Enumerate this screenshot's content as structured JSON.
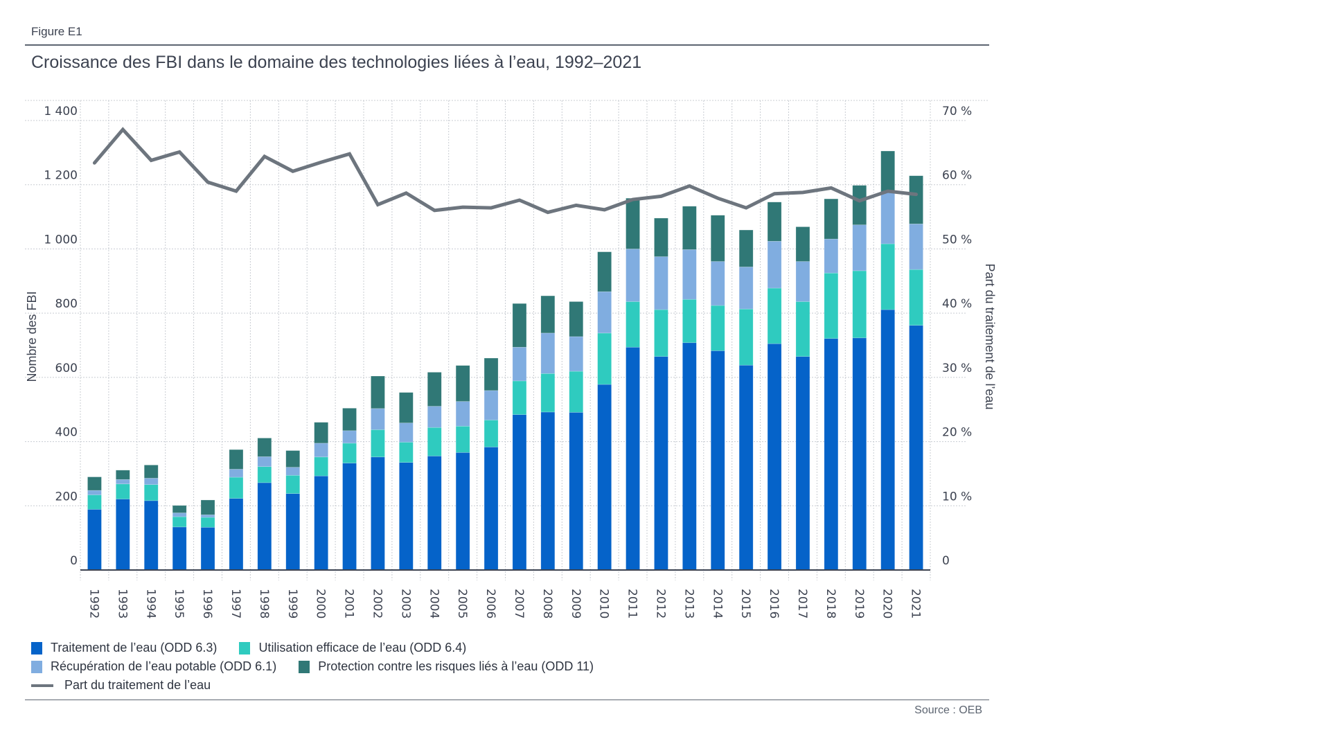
{
  "figure_label": "Figure E1",
  "title": "Croissance des FBI dans le domaine des technologies liées à l’eau, 1992–2021",
  "source": "Source : OEB",
  "colors": {
    "treatment": "#0563c9",
    "efficiency": "#2fcbbf",
    "potable": "#80ade0",
    "risk": "#307876",
    "share_line": "#6d757e"
  },
  "legend": [
    {
      "key": "treatment",
      "label": "Traitement de l’eau (ODD 6.3)",
      "type": "box"
    },
    {
      "key": "efficiency",
      "label": "Utilisation efficace de l’eau (ODD 6.4)",
      "type": "box"
    },
    {
      "key": "potable",
      "label": "Récupération de l’eau potable (ODD 6.1)",
      "type": "box"
    },
    {
      "key": "risk",
      "label": "Protection contre les risques liés à l’eau (ODD 11)",
      "type": "box"
    },
    {
      "key": "share_line",
      "label": "Part du traitement de l’eau",
      "type": "line"
    }
  ],
  "chart_data": {
    "type": "bar",
    "stacked": true,
    "title": "Croissance des FBI dans le domaine des technologies liées à l’eau, 1992–2021",
    "xlabel": "",
    "ylabel": "Nombre des FBI",
    "y2label": "Part du traitement de l’eau",
    "ylim": [
      0,
      1400
    ],
    "y2lim": [
      0,
      70
    ],
    "yticks": [
      0,
      200,
      400,
      600,
      800,
      1000,
      1200,
      1400
    ],
    "ytick_labels": [
      "0",
      "200",
      "400",
      "600",
      "800",
      "1 000",
      "1 200",
      "1 400"
    ],
    "y2ticks": [
      0,
      10,
      20,
      30,
      40,
      50,
      60,
      70
    ],
    "y2tick_labels": [
      "0",
      "10 %",
      "20 %",
      "30 %",
      "40 %",
      "50 %",
      "60 %",
      "70 %"
    ],
    "grid": true,
    "legend_position": "bottom-left",
    "categories": [
      "1992",
      "1993",
      "1994",
      "1995",
      "1996",
      "1997",
      "1998",
      "1999",
      "2000",
      "2001",
      "2002",
      "2003",
      "2004",
      "2005",
      "2006",
      "2007",
      "2008",
      "2009",
      "2010",
      "2011",
      "2012",
      "2013",
      "2014",
      "2015",
      "2016",
      "2017",
      "2018",
      "2019",
      "2020",
      "2021"
    ],
    "series": [
      {
        "key": "treatment",
        "name": "Traitement de l’eau (ODD 6.3)",
        "axis": "left",
        "values": [
          189,
          221,
          216,
          134,
          133,
          223,
          272,
          238,
          293,
          333,
          352,
          335,
          355,
          366,
          383,
          484,
          492,
          491,
          578,
          694,
          665,
          708,
          683,
          638,
          705,
          665,
          721,
          723,
          811,
          762
        ]
      },
      {
        "key": "efficiency",
        "name": "Utilisation efficace de l’eau (ODD 6.4)",
        "axis": "left",
        "values": [
          45,
          47,
          50,
          32,
          31,
          66,
          50,
          57,
          59,
          62,
          85,
          63,
          89,
          82,
          84,
          105,
          120,
          128,
          160,
          142,
          146,
          135,
          141,
          175,
          173,
          171,
          204,
          209,
          205,
          174
        ]
      },
      {
        "key": "potable",
        "name": "Récupération de l’eau potable (ODD 6.1)",
        "axis": "left",
        "values": [
          14,
          14,
          20,
          12,
          8,
          25,
          31,
          25,
          43,
          39,
          66,
          60,
          66,
          77,
          92,
          105,
          126,
          108,
          129,
          164,
          165,
          155,
          137,
          131,
          146,
          125,
          106,
          143,
          160,
          142
        ]
      },
      {
        "key": "risk",
        "name": "Protection contre les risques liés à l’eau (ODD 11)",
        "axis": "left",
        "values": [
          42,
          29,
          41,
          23,
          46,
          61,
          58,
          52,
          65,
          70,
          101,
          95,
          106,
          112,
          101,
          136,
          116,
          109,
          124,
          158,
          120,
          135,
          144,
          115,
          122,
          108,
          125,
          123,
          129,
          150
        ]
      },
      {
        "key": "share_line",
        "name": "Part du traitement de l’eau",
        "axis": "right",
        "type": "line",
        "unit": "%",
        "values": [
          63.4,
          68.6,
          63.8,
          65.1,
          60.4,
          59.0,
          64.4,
          62.1,
          63.5,
          64.8,
          56.9,
          58.7,
          56.0,
          56.5,
          56.4,
          57.6,
          55.7,
          56.8,
          56.1,
          57.7,
          58.2,
          59.8,
          57.9,
          56.4,
          58.6,
          58.8,
          59.5,
          57.5,
          59.0,
          58.5
        ]
      }
    ]
  }
}
